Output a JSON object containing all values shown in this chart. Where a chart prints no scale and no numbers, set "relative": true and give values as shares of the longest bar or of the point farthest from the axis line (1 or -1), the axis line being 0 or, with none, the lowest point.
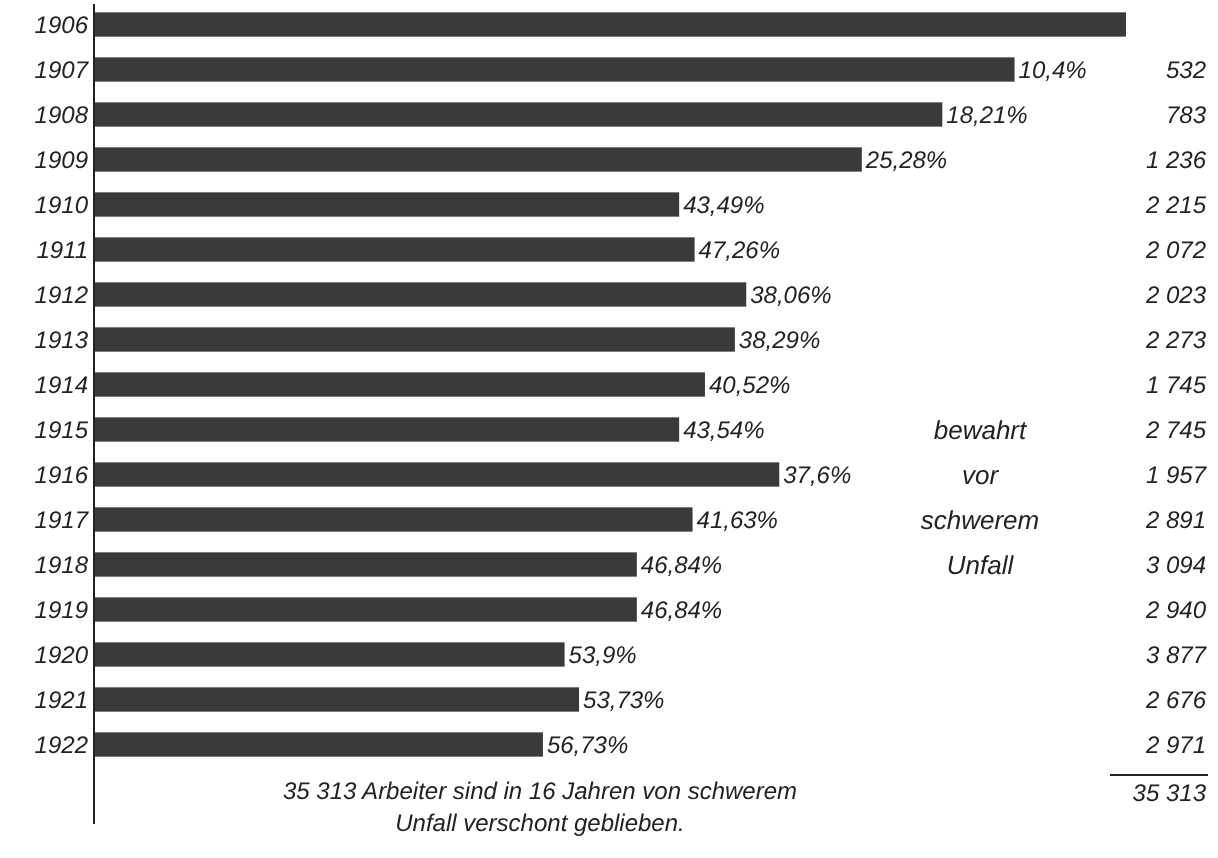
{
  "chart_data": {
    "type": "bar",
    "orientation": "horizontal",
    "relative": true,
    "categories": [
      "1906",
      "1907",
      "1908",
      "1909",
      "1910",
      "1911",
      "1912",
      "1913",
      "1914",
      "1915",
      "1916",
      "1917",
      "1918",
      "1919",
      "1920",
      "1921",
      "1922"
    ],
    "values": [
      1,
      0.892,
      0.822,
      0.744,
      0.567,
      0.582,
      0.632,
      0.621,
      0.592,
      0.567,
      0.664,
      0.58,
      0.526,
      0.526,
      0.456,
      0.47,
      0.435
    ],
    "color": "#3a3a3a",
    "annotations": [
      {
        "text": "10,4%",
        "x": 0.892,
        "y": "1907"
      },
      {
        "text": "18,21%",
        "x": 0.822,
        "y": "1908"
      },
      {
        "text": "25,28%",
        "x": 0.744,
        "y": "1909"
      },
      {
        "text": "43,49%",
        "x": 0.567,
        "y": "1910"
      },
      {
        "text": "47,26%",
        "x": 0.582,
        "y": "1911"
      },
      {
        "text": "38,06%",
        "x": 0.632,
        "y": "1912"
      },
      {
        "text": "38,29%",
        "x": 0.621,
        "y": "1913"
      },
      {
        "text": "40,52%",
        "x": 0.592,
        "y": "1914"
      },
      {
        "text": "43,54%",
        "x": 0.567,
        "y": "1915"
      },
      {
        "text": "37,6%",
        "x": 0.664,
        "y": "1916"
      },
      {
        "text": "41,63%",
        "x": 0.58,
        "y": "1917"
      },
      {
        "text": "46,84%",
        "x": 0.526,
        "y": "1918"
      },
      {
        "text": "46,84%",
        "x": 0.526,
        "y": "1919"
      },
      {
        "text": "53,9%",
        "x": 0.456,
        "y": "1920"
      },
      {
        "text": "53,73%",
        "x": 0.47,
        "y": "1921"
      },
      {
        "text": "56,73%",
        "x": 0.435,
        "y": "1922"
      },
      "532",
      "783",
      "1 236",
      "2 215",
      "2 072",
      "2 023",
      "2 273",
      "1 745",
      "2 745",
      "1 957",
      "2 891",
      "3 094",
      "2 940",
      "3 877",
      "2 676",
      "2 971",
      "35 313",
      "bewahrt vor schwerem Unfall",
      "35 313 Arbeiter sind in 16 Jahren von schwerem Unfall verschont geblieben."
    ]
  }
}
